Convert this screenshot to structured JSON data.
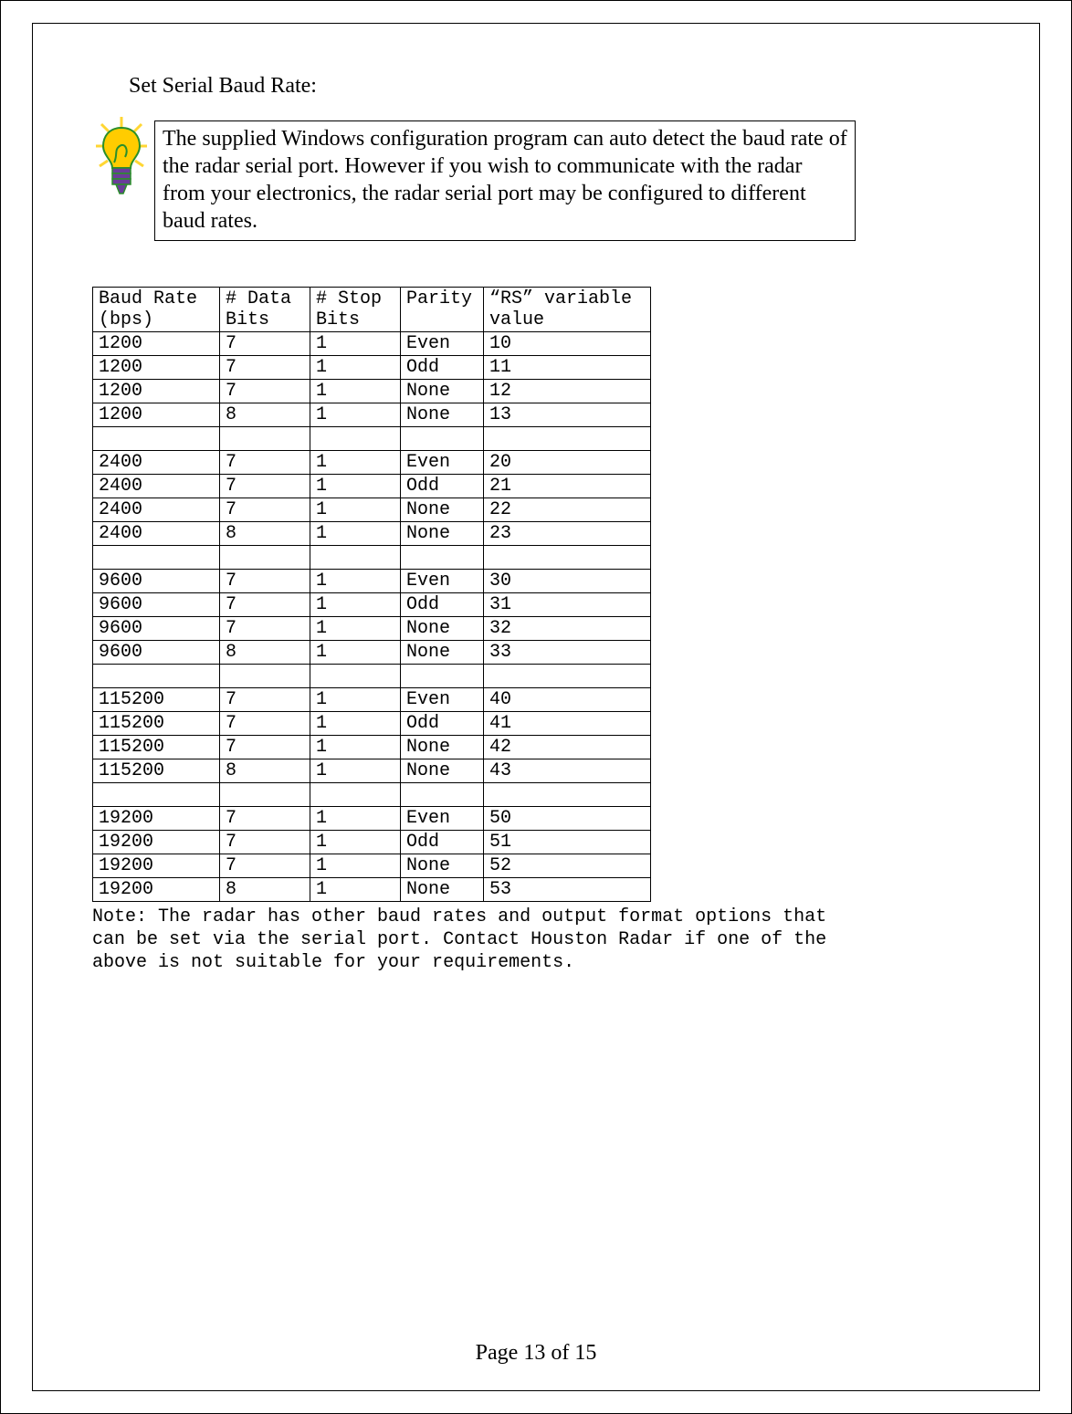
{
  "heading": "Set Serial Baud Rate:",
  "note_box": "The supplied Windows configuration program can auto detect the baud rate of the radar serial port. However if you wish to communicate with the radar from your electronics, the radar serial port may be configured to different baud rates.",
  "table": {
    "columns": [
      "Baud Rate (bps)",
      "# Data Bits",
      "# Stop Bits",
      "Parity",
      "“RS” variable value"
    ],
    "header_lines": {
      "col0": [
        "Baud Rate",
        "(bps)"
      ],
      "col1": [
        "# Data",
        "Bits"
      ],
      "col2": [
        "# Stop",
        "Bits"
      ],
      "col3": [
        "Parity",
        ""
      ],
      "col4": [
        "“RS” variable",
        "value"
      ]
    },
    "groups": [
      [
        [
          "1200",
          "7",
          "1",
          "Even",
          "10"
        ],
        [
          "1200",
          "7",
          "1",
          "Odd",
          "11"
        ],
        [
          "1200",
          "7",
          "1",
          "None",
          "12"
        ],
        [
          "1200",
          "8",
          "1",
          "None",
          "13"
        ]
      ],
      [
        [
          "2400",
          "7",
          "1",
          "Even",
          "20"
        ],
        [
          "2400",
          "7",
          "1",
          "Odd",
          "21"
        ],
        [
          "2400",
          "7",
          "1",
          "None",
          "22"
        ],
        [
          "2400",
          "8",
          "1",
          "None",
          "23"
        ]
      ],
      [
        [
          "9600",
          "7",
          "1",
          "Even",
          "30"
        ],
        [
          "9600",
          "7",
          "1",
          "Odd",
          "31"
        ],
        [
          "9600",
          "7",
          "1",
          "None",
          "32"
        ],
        [
          "9600",
          "8",
          "1",
          "None",
          "33"
        ]
      ],
      [
        [
          "115200",
          "7",
          "1",
          "Even",
          "40"
        ],
        [
          "115200",
          "7",
          "1",
          "Odd",
          "41"
        ],
        [
          "115200",
          "7",
          "1",
          "None",
          "42"
        ],
        [
          "115200",
          "8",
          "1",
          "None",
          "43"
        ]
      ],
      [
        [
          "19200",
          "7",
          "1",
          "Even",
          "50"
        ],
        [
          "19200",
          "7",
          "1",
          "Odd",
          "51"
        ],
        [
          "19200",
          "7",
          "1",
          "None",
          "52"
        ],
        [
          "19200",
          "8",
          "1",
          "None",
          "53"
        ]
      ]
    ]
  },
  "footnote": "Note: The radar has other baud rates and output format options that can be set via the serial port. Contact Houston Radar if one of the above is not suitable for your requirements.",
  "page_number": "Page 13 of 15",
  "icon_name": "lightbulb-idea-icon",
  "colors": {
    "page_bg": "#ffffff",
    "text": "#000000",
    "table_border": "#000000",
    "box_border": "#000000",
    "bulb_yellow": "#ffcc00",
    "bulb_rays": "#ffd633",
    "bulb_outline": "#2a8f2a",
    "bulb_shade": "#6a3d9a"
  }
}
